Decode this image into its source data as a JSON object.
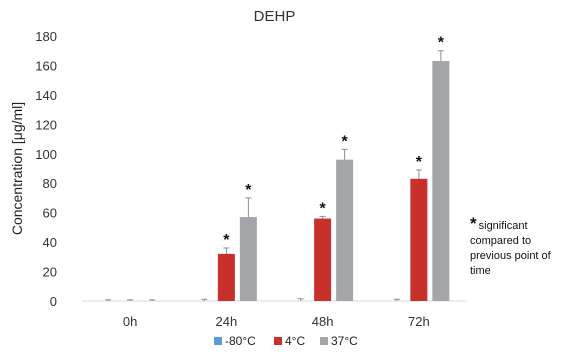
{
  "chart_data": {
    "type": "bar",
    "title": "DEHP",
    "xlabel": "",
    "ylabel": "Concentration [μg/ml]",
    "ylim": [
      0,
      180
    ],
    "yticks": [
      "0",
      "20",
      "40",
      "60",
      "80",
      "100",
      "120",
      "140",
      "160",
      "180"
    ],
    "categories": [
      "0h",
      "24h",
      "48h",
      "72h"
    ],
    "grid": false,
    "legend_position": "bottom",
    "series": [
      {
        "name": "-80°C",
        "color": "#5b9bd5",
        "values": [
          0,
          0,
          0,
          0
        ],
        "errors": [
          0.8,
          1.2,
          1.5,
          1.2
        ]
      },
      {
        "name": "4°C",
        "color": "#c8302c",
        "values": [
          0,
          32,
          56,
          83
        ],
        "errors": [
          0.8,
          4,
          1.5,
          6
        ]
      },
      {
        "name": "37°C",
        "color": "#a3a5a8",
        "values": [
          0,
          57,
          96,
          163
        ],
        "errors": [
          0.8,
          13,
          7,
          7
        ]
      }
    ],
    "significance_markers": [
      {
        "series": "4°C",
        "category": "24h",
        "label": "*"
      },
      {
        "series": "37°C",
        "category": "24h",
        "label": "*"
      },
      {
        "series": "4°C",
        "category": "48h",
        "label": "*"
      },
      {
        "series": "37°C",
        "category": "48h",
        "label": "*"
      },
      {
        "series": "4°C",
        "category": "72h",
        "label": "*"
      },
      {
        "series": "37°C",
        "category": "72h",
        "label": "*"
      }
    ],
    "annotation": {
      "star": "*",
      "text": "significant compared to previous point of time"
    }
  }
}
